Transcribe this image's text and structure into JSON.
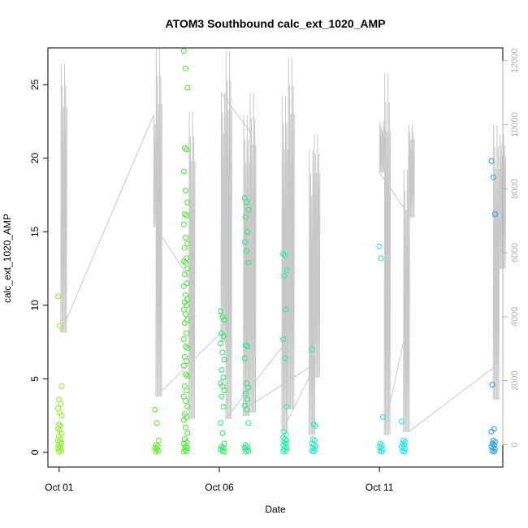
{
  "chart_data": {
    "type": "scatter",
    "title": "ATOM3 Southbound calc_ext_1020_AMP",
    "xlabel": "Date",
    "ylabel": "calc_ext_1020_AMP",
    "x_ticks": [
      {
        "label": "Oct 01",
        "day": 0
      },
      {
        "label": "Oct 06",
        "day": 5
      },
      {
        "label": "Oct 11",
        "day": 10
      }
    ],
    "xlim_days": [
      -0.35,
      13.85
    ],
    "ylim": [
      -1.0,
      27.5
    ],
    "y_ticks": [
      0,
      5,
      10,
      15,
      20,
      25
    ],
    "y2lim": [
      -700,
      12400
    ],
    "y2_ticks": [
      0,
      2000,
      4000,
      6000,
      8000,
      10000,
      12000
    ],
    "grid": false,
    "legend": "none",
    "point_series": [
      {
        "day": 0.02,
        "color": "#8cf01e",
        "values": [
          10.6,
          8.6,
          4.5,
          3.6,
          3.3,
          3.0,
          2.7,
          2.5,
          1.9,
          1.8,
          1.6,
          1.5,
          1.3,
          1.1,
          0.9,
          0.8,
          0.7,
          0.6,
          0.5,
          0.4,
          0.3,
          0.2,
          0.1,
          0.05
        ]
      },
      {
        "day": 3.05,
        "color": "#5aec1e",
        "values": [
          2.9,
          2.0,
          0.8,
          0.5,
          0.4,
          0.3,
          0.2,
          0.1,
          0.05
        ]
      },
      {
        "day": 3.95,
        "color": "#3ef028",
        "values": [
          27.3,
          26.1,
          24.8,
          20.7,
          20.6,
          19.1,
          17.8,
          17.0,
          16.2,
          16.1,
          15.5,
          14.6,
          14.2,
          13.9,
          13.2,
          13.0,
          12.9,
          12.5,
          12.1,
          11.5,
          11.3,
          10.7,
          10.4,
          10.2,
          10.0,
          9.7,
          9.4,
          9.0,
          8.8,
          8.1,
          7.7,
          7.2,
          7.1,
          6.5,
          6.2,
          5.9,
          5.3,
          5.2,
          4.5,
          4.2,
          3.8,
          3.5,
          3.1,
          2.6,
          2.4,
          2.2,
          1.7,
          1.3,
          0.9,
          0.7,
          0.6,
          0.4,
          0.3,
          0.2,
          0.1,
          0.05
        ]
      },
      {
        "day": 5.1,
        "color": "#1ef05a",
        "values": [
          9.6,
          9.2,
          9.0,
          8.1,
          7.9,
          7.4,
          6.8,
          6.3,
          5.6,
          5.1,
          4.7,
          4.5,
          4.2,
          3.8,
          3.1,
          2.0,
          1.3,
          0.6,
          0.4,
          0.3,
          0.2,
          0.1,
          0.05
        ]
      },
      {
        "day": 5.85,
        "color": "#1ef07a",
        "values": [
          17.3,
          17.0,
          16.5,
          16.0,
          15.0,
          14.3,
          13.7,
          12.9,
          7.3,
          7.2,
          6.4,
          4.7,
          4.4,
          4.0,
          3.6,
          3.2,
          2.9,
          2.0,
          0.5,
          0.4,
          0.3,
          0.2,
          0.1,
          0.05
        ]
      },
      {
        "day": 7.05,
        "color": "#1ef0a0",
        "values": [
          13.5,
          13.4,
          12.4,
          12.0,
          9.7,
          7.7,
          6.4,
          3.1,
          1.4,
          1.2,
          1.0,
          0.9,
          0.8,
          0.7,
          0.6,
          0.5,
          0.4,
          0.3,
          0.2,
          0.1,
          0.05
        ]
      },
      {
        "day": 7.95,
        "color": "#1ef0b8",
        "values": [
          7.0,
          1.9,
          1.8,
          0.9,
          0.8,
          0.6,
          0.5,
          0.4,
          0.3,
          0.2,
          0.1,
          0.05
        ]
      },
      {
        "day": 10.05,
        "color": "#1ee8e0",
        "values": [
          14.0,
          13.2,
          2.4,
          0.6,
          0.5,
          0.4,
          0.3,
          0.2,
          0.1,
          0.05
        ]
      },
      {
        "day": 10.75,
        "color": "#1ee4f0",
        "values": [
          2.1,
          0.8,
          0.7,
          0.6,
          0.5,
          0.4,
          0.3,
          0.2,
          0.1,
          0.05
        ]
      },
      {
        "day": 13.55,
        "color": "#1e9cf0",
        "values": [
          19.8,
          18.7,
          16.2,
          4.6,
          1.6,
          1.4,
          0.8,
          0.7,
          0.6,
          0.5,
          0.4,
          0.3,
          0.2,
          0.1,
          0.05
        ]
      }
    ],
    "line_series": {
      "color": "#c8c8c8",
      "bursts": [
        {
          "day": 0.05,
          "peak": 11900,
          "low": 3500
        },
        {
          "day": 2.95,
          "peak": 10300,
          "low": 6800
        },
        {
          "day": 3.02,
          "peak": 12400,
          "low": 1500
        },
        {
          "day": 4.05,
          "peak": 10400,
          "low": 800
        },
        {
          "day": 5.05,
          "peak": 11000,
          "low": 3200
        },
        {
          "day": 5.2,
          "peak": 12300,
          "low": 800
        },
        {
          "day": 5.75,
          "peak": 10300,
          "low": 900
        },
        {
          "day": 5.95,
          "peak": 11000,
          "low": 1000
        },
        {
          "day": 6.95,
          "peak": 10900,
          "low": 400
        },
        {
          "day": 7.15,
          "peak": 12100,
          "low": 1100
        },
        {
          "day": 7.8,
          "peak": 9200,
          "low": 300
        },
        {
          "day": 7.95,
          "peak": 9700,
          "low": 2100
        },
        {
          "day": 10.0,
          "peak": 10100,
          "low": 8500
        },
        {
          "day": 10.15,
          "peak": 11600,
          "low": 300
        },
        {
          "day": 10.75,
          "peak": 8600,
          "low": 400
        },
        {
          "day": 10.9,
          "peak": 10000,
          "low": 7100
        },
        {
          "day": 13.55,
          "peak": 10000,
          "low": 1400
        },
        {
          "day": 13.75,
          "peak": 9700,
          "low": 5500
        }
      ],
      "connectors": [
        {
          "from": [
            0.05,
            3500
          ],
          "to": [
            2.95,
            10300
          ]
        },
        {
          "from": [
            3.02,
            6800
          ],
          "to": [
            4.05,
            5200
          ]
        },
        {
          "from": [
            3.02,
            1500
          ],
          "to": [
            5.05,
            3500
          ]
        },
        {
          "from": [
            5.05,
            11000
          ],
          "to": [
            5.95,
            9800
          ]
        },
        {
          "from": [
            5.2,
            800
          ],
          "to": [
            7.15,
            3300
          ]
        },
        {
          "from": [
            5.75,
            1100
          ],
          "to": [
            7.95,
            2500
          ]
        },
        {
          "from": [
            6.95,
            400
          ],
          "to": [
            7.8,
            2100
          ]
        },
        {
          "from": [
            10.0,
            8500
          ],
          "to": [
            10.9,
            7200
          ]
        },
        {
          "from": [
            10.15,
            500
          ],
          "to": [
            10.75,
            3200
          ]
        },
        {
          "from": [
            10.9,
            400
          ],
          "to": [
            13.55,
            2400
          ]
        }
      ]
    }
  }
}
